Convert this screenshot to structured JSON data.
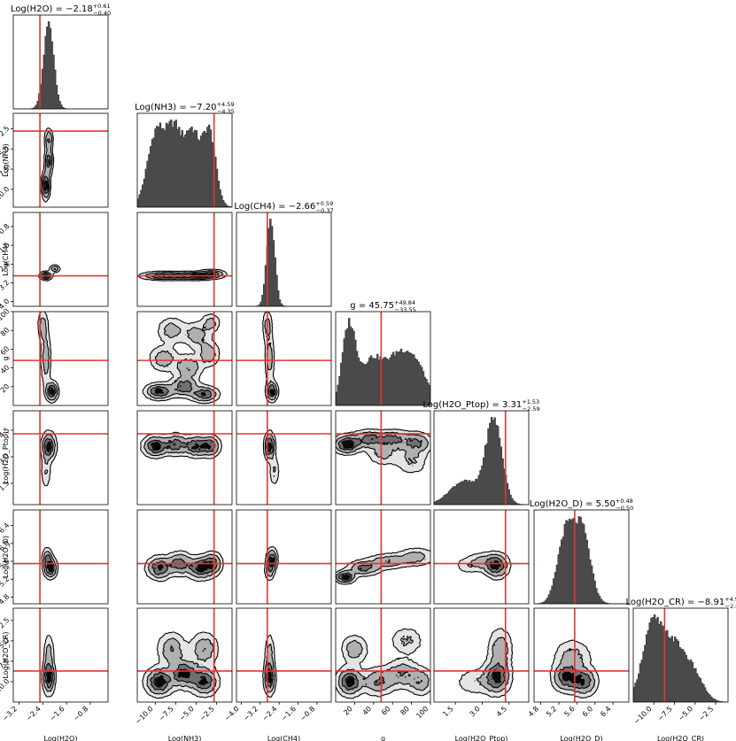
{
  "chart_data": {
    "type": "corner",
    "parameters": [
      {
        "key": "h2o",
        "label": "Log(H2O)",
        "title_prefix": "Log(H2O) = ",
        "value": "−2.18",
        "plus": "+0.61",
        "minus": "−0.40",
        "range": [
          -3.4,
          -0.2
        ],
        "ticks": [
          -3.2,
          -2.4,
          -1.6,
          -0.8
        ],
        "tick_labels": [
          "−3.2",
          "−2.4",
          "−1.6",
          "−0.8"
        ],
        "truth": -2.5,
        "median": -2.18,
        "hist_peaks": [
          {
            "mu": -2.2,
            "sigma": 0.17,
            "amp": 1.0
          }
        ]
      },
      {
        "key": "nh3",
        "label": "Log(NH3)",
        "title_prefix": "Log(NH3) = ",
        "value": "−7.20",
        "plus": "+4.59",
        "minus": "−4.35",
        "range": [
          -12.2,
          -0.6
        ],
        "ticks": [
          -10.0,
          -7.5,
          -5.0,
          -2.5
        ],
        "tick_labels": [
          "−10.0",
          "−7.5",
          "−5.0",
          "−2.5"
        ],
        "truth": -2.8,
        "median": -7.2,
        "hist_peaks": [
          {
            "mu": -9.8,
            "sigma": 1.1,
            "amp": 0.82
          },
          {
            "mu": -7.6,
            "sigma": 0.9,
            "amp": 0.74
          },
          {
            "mu": -5.5,
            "sigma": 0.9,
            "amp": 0.78
          },
          {
            "mu": -3.4,
            "sigma": 0.8,
            "amp": 0.8
          }
        ]
      },
      {
        "key": "ch4",
        "label": "Log(CH4)",
        "title_prefix": "Log(CH4) = ",
        "value": "−2.66",
        "plus": "+0.59",
        "minus": "−0.37",
        "range": [
          -4.2,
          -0.2
        ],
        "ticks": [
          -4.0,
          -3.2,
          -2.4,
          -1.6,
          -0.8
        ],
        "tick_labels": [
          "−4.0",
          "−3.2",
          "−2.4",
          "−1.6",
          "−0.8"
        ],
        "truth": -2.9,
        "median": -2.66,
        "hist_peaks": [
          {
            "mu": -2.75,
            "sigma": 0.17,
            "amp": 1.0
          }
        ]
      },
      {
        "key": "g",
        "label": "g",
        "title_prefix": "g = ",
        "value": "45.75",
        "plus": "+49.84",
        "minus": "−33.55",
        "range": [
          0,
          100
        ],
        "ticks": [
          20,
          40,
          60,
          80,
          100
        ],
        "tick_labels": [
          "20",
          "40",
          "60",
          "80",
          "100"
        ],
        "truth": 48,
        "median": 45.75,
        "hist_peaks": [
          {
            "mu": 14,
            "sigma": 7,
            "amp": 0.95
          },
          {
            "mu": 38,
            "sigma": 12,
            "amp": 0.55
          },
          {
            "mu": 65,
            "sigma": 12,
            "amp": 0.5
          },
          {
            "mu": 85,
            "sigma": 12,
            "amp": 0.45
          }
        ]
      },
      {
        "key": "ptop",
        "label": "Log(H2O_Ptop)",
        "title_prefix": "Log(H2O_Ptop) = ",
        "value": "3.31",
        "plus": "+1.53",
        "minus": "−2.59",
        "range": [
          0.3,
          5.6
        ],
        "ticks": [
          1.5,
          3.0,
          4.5
        ],
        "tick_labels": [
          "1.5",
          "3.0",
          "4.5"
        ],
        "truth": 4.3,
        "median": 3.31,
        "hist_peaks": [
          {
            "mu": 3.65,
            "sigma": 0.45,
            "amp": 1.0
          },
          {
            "mu": 2.0,
            "sigma": 0.8,
            "amp": 0.28
          }
        ]
      },
      {
        "key": "d",
        "label": "Log(H2O_D)",
        "title_prefix": "Log(H2O_D) = ",
        "value": "5.50",
        "plus": "+0.48",
        "minus": "−0.50",
        "range": [
          4.65,
          6.75
        ],
        "ticks": [
          4.8,
          5.2,
          5.6,
          6.0,
          6.4
        ],
        "tick_labels": [
          "4.8",
          "5.2",
          "5.6",
          "6.0",
          "6.4"
        ],
        "truth": 5.55,
        "median": 5.5,
        "hist_peaks": [
          {
            "mu": 5.35,
            "sigma": 0.18,
            "amp": 0.88
          },
          {
            "mu": 5.72,
            "sigma": 0.18,
            "amp": 0.9
          }
        ]
      },
      {
        "key": "cr",
        "label": "Log(H2O_CR)",
        "title_prefix": "Log(H2O_CR) = ",
        "value": "−8.91",
        "plus": "+4.91",
        "minus": "−2.88",
        "range": [
          -12.5,
          -1.0
        ],
        "ticks": [
          -10.0,
          -7.5,
          -5.0,
          -2.5
        ],
        "tick_labels": [
          "−10.0",
          "−7.5",
          "−5.0",
          "−2.5"
        ],
        "truth": -8.7,
        "median": -8.91,
        "hist_peaks": [
          {
            "mu": -10.2,
            "sigma": 1.2,
            "amp": 0.85
          },
          {
            "mu": -7.6,
            "sigma": 1.3,
            "amp": 0.6
          },
          {
            "mu": -5.2,
            "sigma": 1.2,
            "amp": 0.3
          }
        ]
      }
    ],
    "joint_peaks": [
      {
        "row": 1,
        "col": 0,
        "blobs": [
          [
            -2.3,
            -9.5,
            0.08,
            1.0,
            0.9
          ],
          [
            -2.2,
            -6.5,
            0.08,
            1.0,
            0.7
          ],
          [
            -2.2,
            -3.8,
            0.08,
            0.8,
            0.55
          ]
        ]
      },
      {
        "row": 2,
        "col": 0,
        "blobs": [
          [
            -2.3,
            -2.9,
            0.12,
            0.1,
            0.9
          ],
          [
            -2.0,
            -2.6,
            0.1,
            0.09,
            0.6
          ]
        ]
      },
      {
        "row": 3,
        "col": 0,
        "blobs": [
          [
            -2.1,
            15,
            0.12,
            6,
            1.0
          ],
          [
            -2.3,
            50,
            0.1,
            16,
            0.5
          ],
          [
            -2.4,
            85,
            0.1,
            10,
            0.45
          ]
        ]
      },
      {
        "row": 4,
        "col": 0,
        "blobs": [
          [
            -2.2,
            3.6,
            0.14,
            0.45,
            1.0
          ],
          [
            -2.3,
            2.2,
            0.1,
            0.6,
            0.35
          ]
        ]
      },
      {
        "row": 5,
        "col": 0,
        "blobs": [
          [
            -2.15,
            5.45,
            0.13,
            0.13,
            1.0
          ],
          [
            -2.25,
            5.7,
            0.1,
            0.12,
            0.6
          ]
        ]
      },
      {
        "row": 6,
        "col": 0,
        "blobs": [
          [
            -2.2,
            -9.5,
            0.12,
            1.2,
            1.0
          ],
          [
            -2.2,
            -6.5,
            0.1,
            1.4,
            0.45
          ]
        ]
      },
      {
        "row": 2,
        "col": 1,
        "blobs": [
          [
            -9,
            -2.9,
            1.6,
            0.1,
            0.8
          ],
          [
            -5,
            -2.9,
            1.6,
            0.1,
            0.8
          ],
          [
            -3,
            -2.8,
            0.9,
            0.1,
            0.6
          ]
        ]
      },
      {
        "row": 3,
        "col": 1,
        "blobs": [
          [
            -9.5,
            15,
            1.0,
            5,
            0.9
          ],
          [
            -6.5,
            20,
            1.0,
            6,
            0.75
          ],
          [
            -4,
            12,
            1.0,
            5,
            0.8
          ],
          [
            -9,
            50,
            1.0,
            8,
            0.5
          ],
          [
            -6,
            40,
            1.0,
            8,
            0.55
          ],
          [
            -3.5,
            55,
            0.8,
            8,
            0.5
          ],
          [
            -8,
            80,
            1.0,
            8,
            0.45
          ],
          [
            -5,
            75,
            1.0,
            8,
            0.45
          ],
          [
            -3.2,
            88,
            0.7,
            6,
            0.4
          ]
        ]
      },
      {
        "row": 4,
        "col": 1,
        "blobs": [
          [
            -10,
            3.6,
            0.9,
            0.35,
            0.9
          ],
          [
            -7.5,
            3.7,
            0.9,
            0.35,
            0.7
          ],
          [
            -5,
            3.6,
            0.9,
            0.35,
            0.8
          ],
          [
            -3.2,
            3.6,
            0.7,
            0.35,
            0.7
          ]
        ]
      },
      {
        "row": 5,
        "col": 1,
        "blobs": [
          [
            -9.5,
            5.45,
            0.9,
            0.15,
            0.85
          ],
          [
            -7,
            5.55,
            0.9,
            0.15,
            0.7
          ],
          [
            -4.5,
            5.45,
            0.9,
            0.15,
            0.8
          ],
          [
            -3.0,
            5.55,
            0.7,
            0.15,
            0.7
          ]
        ]
      },
      {
        "row": 6,
        "col": 1,
        "blobs": [
          [
            -9.5,
            -10,
            1.0,
            1.0,
            0.8
          ],
          [
            -6.5,
            -9,
            1.0,
            1.0,
            0.75
          ],
          [
            -4,
            -10,
            1.0,
            1.0,
            0.7
          ],
          [
            -8,
            -6,
            1.0,
            1.2,
            0.45
          ],
          [
            -4,
            -6,
            1.0,
            1.2,
            0.45
          ]
        ]
      },
      {
        "row": 3,
        "col": 2,
        "blobs": [
          [
            -2.7,
            15,
            0.14,
            6,
            1.0
          ],
          [
            -2.8,
            50,
            0.12,
            16,
            0.5
          ],
          [
            -2.9,
            85,
            0.12,
            10,
            0.45
          ]
        ]
      },
      {
        "row": 4,
        "col": 2,
        "blobs": [
          [
            -2.8,
            3.6,
            0.13,
            0.45,
            1.0
          ],
          [
            -2.6,
            2.2,
            0.12,
            0.5,
            0.35
          ]
        ]
      },
      {
        "row": 5,
        "col": 2,
        "blobs": [
          [
            -2.7,
            5.65,
            0.13,
            0.14,
            1.0
          ],
          [
            -2.8,
            5.4,
            0.12,
            0.13,
            0.6
          ]
        ]
      },
      {
        "row": 6,
        "col": 2,
        "blobs": [
          [
            -2.8,
            -9.5,
            0.14,
            1.2,
            1.0
          ],
          [
            -2.8,
            -6.5,
            0.12,
            1.4,
            0.45
          ]
        ]
      },
      {
        "row": 4,
        "col": 3,
        "blobs": [
          [
            12,
            3.7,
            8,
            0.3,
            0.9
          ],
          [
            35,
            4.0,
            10,
            0.3,
            0.6
          ],
          [
            60,
            4.0,
            10,
            0.3,
            0.55
          ],
          [
            85,
            3.8,
            10,
            0.35,
            0.55
          ],
          [
            50,
            3.2,
            10,
            0.4,
            0.35
          ],
          [
            80,
            2.8,
            10,
            0.5,
            0.3
          ]
        ]
      },
      {
        "row": 5,
        "col": 3,
        "blobs": [
          [
            10,
            5.25,
            6,
            0.08,
            1.0
          ],
          [
            30,
            5.45,
            10,
            0.1,
            0.7
          ],
          [
            55,
            5.6,
            12,
            0.1,
            0.55
          ],
          [
            85,
            5.7,
            12,
            0.12,
            0.45
          ]
        ]
      },
      {
        "row": 6,
        "col": 3,
        "blobs": [
          [
            15,
            -10,
            8,
            1.0,
            0.9
          ],
          [
            20,
            -6,
            8,
            1.0,
            0.5
          ],
          [
            45,
            -10,
            10,
            1.0,
            0.6
          ],
          [
            70,
            -9,
            10,
            1.0,
            0.55
          ],
          [
            90,
            -10,
            8,
            1.0,
            0.5
          ],
          [
            75,
            -5,
            10,
            1.0,
            0.35
          ]
        ]
      },
      {
        "row": 5,
        "col": 4,
        "blobs": [
          [
            3.8,
            5.5,
            0.4,
            0.16,
            1.0
          ],
          [
            3.0,
            5.6,
            0.5,
            0.12,
            0.4
          ],
          [
            2.2,
            5.5,
            0.5,
            0.12,
            0.25
          ]
        ]
      },
      {
        "row": 6,
        "col": 4,
        "blobs": [
          [
            3.8,
            -9.5,
            0.45,
            1.2,
            1.0
          ],
          [
            4.0,
            -6,
            0.4,
            1.5,
            0.55
          ],
          [
            2.5,
            -10,
            0.6,
            1.0,
            0.3
          ]
        ]
      },
      {
        "row": 6,
        "col": 5,
        "blobs": [
          [
            5.35,
            -9.5,
            0.17,
            1.0,
            0.9
          ],
          [
            5.75,
            -10,
            0.17,
            1.0,
            0.9
          ],
          [
            5.5,
            -7,
            0.25,
            1.3,
            0.45
          ]
        ]
      }
    ]
  }
}
